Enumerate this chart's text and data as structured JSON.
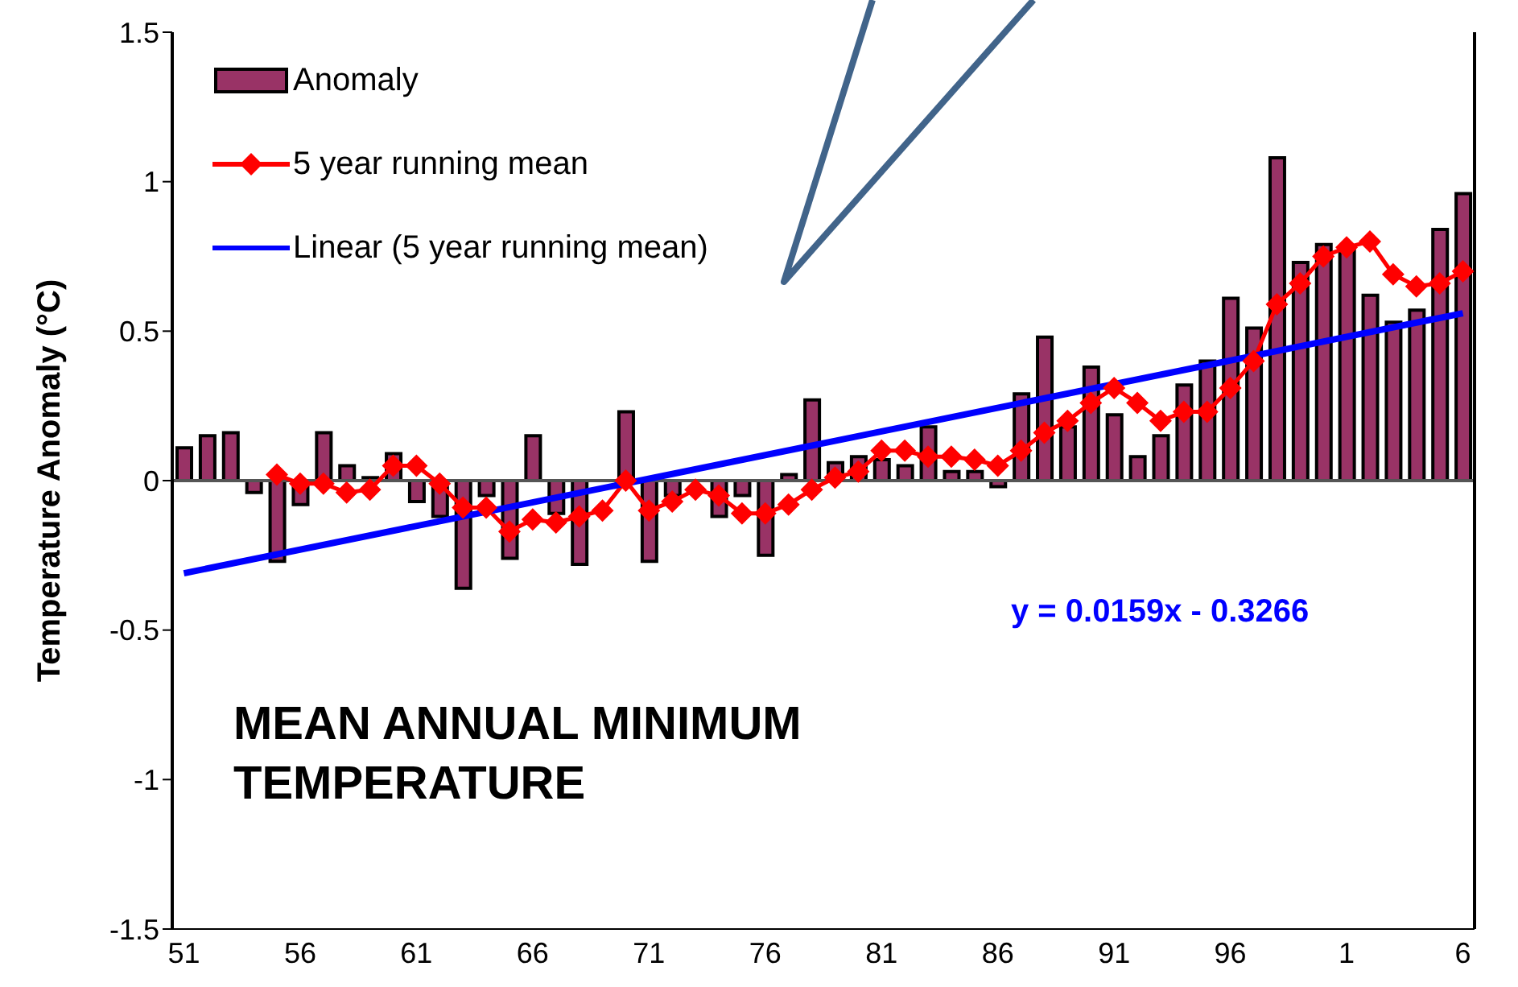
{
  "chart_data": {
    "type": "bar",
    "title": "MEAN ANNUAL MINIMUM TEMPERATURE",
    "ylabel": "Temperature Anomaly (°C)",
    "annotations": [
      "y = 0.0159x - 0.3266"
    ],
    "categories": [
      "51",
      null,
      null,
      null,
      null,
      "56",
      null,
      null,
      null,
      null,
      "61",
      null,
      null,
      null,
      null,
      "66",
      null,
      null,
      null,
      null,
      "71",
      null,
      null,
      null,
      null,
      "76",
      null,
      null,
      null,
      null,
      "81",
      null,
      null,
      null,
      null,
      "86",
      null,
      null,
      null,
      null,
      "91",
      null,
      null,
      null,
      null,
      "96",
      null,
      null,
      null,
      null,
      "1",
      null,
      null,
      null,
      null,
      "6"
    ],
    "series": [
      {
        "name": "Anomaly",
        "type": "bar",
        "color": "#993366",
        "values": [
          0.11,
          0.15,
          0.16,
          -0.04,
          -0.27,
          -0.08,
          0.16,
          0.05,
          0.01,
          0.09,
          -0.07,
          -0.12,
          -0.36,
          -0.05,
          -0.26,
          0.15,
          -0.11,
          -0.28,
          0.0,
          0.23,
          -0.27,
          -0.05,
          0.0,
          -0.12,
          -0.05,
          -0.25,
          0.02,
          0.27,
          0.06,
          0.08,
          0.07,
          0.05,
          0.18,
          0.03,
          0.03,
          -0.02,
          0.29,
          0.48,
          0.18,
          0.38,
          0.22,
          0.08,
          0.15,
          0.32,
          0.4,
          0.61,
          0.51,
          1.08,
          0.73,
          0.79,
          0.78,
          0.62,
          0.53,
          0.57,
          0.84,
          0.96
        ]
      },
      {
        "name": "5 year running mean",
        "type": "line",
        "color": "#ff0000",
        "marker": "diamond",
        "values": [
          null,
          null,
          null,
          null,
          0.02,
          -0.01,
          -0.01,
          -0.04,
          -0.03,
          0.05,
          0.05,
          -0.01,
          -0.09,
          -0.09,
          -0.17,
          -0.13,
          -0.14,
          -0.12,
          -0.1,
          0.0,
          -0.1,
          -0.07,
          -0.03,
          -0.05,
          -0.11,
          -0.11,
          -0.08,
          -0.03,
          0.01,
          0.03,
          0.1,
          0.1,
          0.08,
          0.08,
          0.07,
          0.05,
          0.1,
          0.16,
          0.2,
          0.26,
          0.31,
          0.26,
          0.2,
          0.23,
          0.23,
          0.31,
          0.4,
          0.59,
          0.66,
          0.75,
          0.78,
          0.8,
          0.69,
          0.65,
          0.66,
          0.7
        ]
      },
      {
        "name": "Linear (5 year running mean)",
        "type": "line",
        "color": "#0000ff",
        "marker": "none",
        "values": [
          -0.31,
          null,
          null,
          null,
          null,
          null,
          null,
          null,
          null,
          null,
          null,
          null,
          null,
          null,
          null,
          null,
          null,
          null,
          null,
          null,
          null,
          null,
          null,
          null,
          null,
          null,
          null,
          null,
          null,
          null,
          null,
          null,
          null,
          null,
          null,
          null,
          null,
          null,
          null,
          null,
          null,
          null,
          null,
          null,
          null,
          null,
          null,
          null,
          null,
          null,
          null,
          null,
          null,
          null,
          null,
          0.56
        ]
      }
    ],
    "ylim": [
      -1.5,
      1.5
    ],
    "yticks": [
      -1.5,
      -1,
      -0.5,
      0,
      0.5,
      1,
      1.5
    ],
    "ref_lines": [
      {
        "axis": "y",
        "value": 0
      }
    ],
    "grid": false,
    "legend": "top left"
  }
}
